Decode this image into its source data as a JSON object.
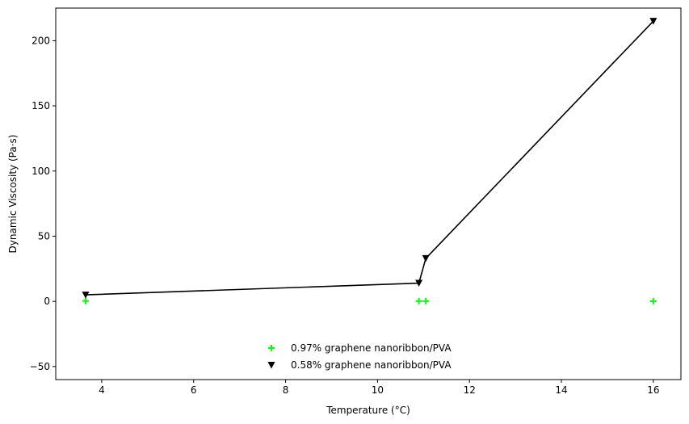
{
  "chart_data": {
    "type": "scatter",
    "title": "",
    "xlabel": "Temperature (°C)",
    "ylabel": "Dynamic Viscosity (Pa·s)",
    "xlim": [
      3.0,
      16.6
    ],
    "ylim": [
      -60,
      225
    ],
    "x_ticks": [
      4,
      6,
      8,
      10,
      12,
      14,
      16
    ],
    "y_ticks": [
      -50,
      0,
      50,
      100,
      150,
      200
    ],
    "grid": false,
    "legend_position": "lower-center",
    "series": [
      {
        "name": "0.97% graphene nanoribbon/PVA",
        "marker": "plus",
        "color": "#00ff00",
        "line": false,
        "points": [
          [
            3.65,
            0.3
          ],
          [
            10.9,
            0.2
          ],
          [
            11.05,
            0.2
          ],
          [
            16.0,
            0.1
          ]
        ]
      },
      {
        "name": "0.58% graphene nanoribbon/PVA",
        "marker": "triangle-down",
        "color": "#000000",
        "line": true,
        "points": [
          [
            3.65,
            5
          ],
          [
            10.9,
            14
          ],
          [
            11.05,
            33
          ],
          [
            16.0,
            215
          ]
        ]
      }
    ]
  }
}
